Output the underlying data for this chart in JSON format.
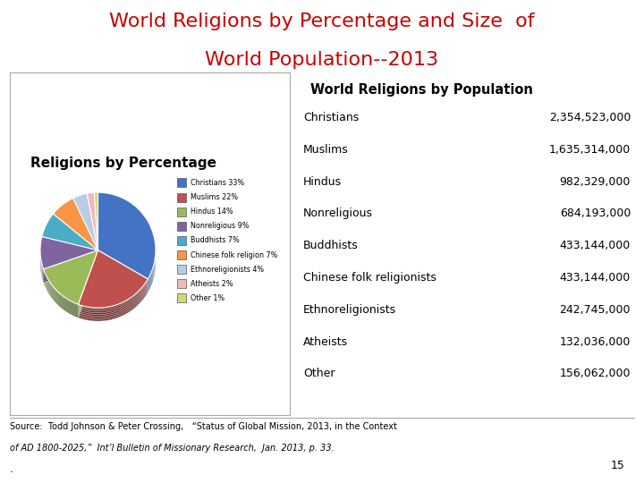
{
  "title_line1": "World Religions by Percentage and Size  of",
  "title_line2": "World Population--2013",
  "title_color": "#cc0000",
  "title_fontsize": 16,
  "pie_title": "Religions by Percentage",
  "pie_labels": [
    "Christians 33%",
    "Muslims 22%",
    "Hindus 14%",
    "Nonreligious 9%",
    "Buddhists 7%",
    "Chinese folk religion 7%",
    "Ethnoreligionists 4%",
    "Atheists 2%",
    "Other 1%"
  ],
  "pie_values": [
    33,
    22,
    14,
    9,
    7,
    7,
    4,
    2,
    1
  ],
  "pie_colors": [
    "#4472c4",
    "#c0504d",
    "#9bbb59",
    "#8064a2",
    "#4bacc6",
    "#f79646",
    "#b8cce4",
    "#f2b8b8",
    "#d4d87a"
  ],
  "table_header": "World Religions by Population",
  "table_religions": [
    "Christians",
    "Muslims",
    "Hindus",
    "Nonreligious",
    "Buddhists",
    "Chinese folk religionists",
    "Ethnoreligionists",
    "Atheists",
    "Other"
  ],
  "table_populations": [
    "2,354,523,000",
    "1,635,314,000",
    "982,329,000",
    "684,193,000",
    "433,144,000",
    "433,144,000",
    "242,745,000",
    "132,036,000",
    "156,062,000"
  ],
  "footnote_line1": "Source:  Todd Johnson & Peter Crossing,   “Status of Global Mission, 2013, in the Context",
  "footnote_line2": "of AD 1800-2025,”  Int’l Bulletin of Missionary Research,  Jan. 2013, p. 33.",
  "page_number": "15",
  "bg_color": "#ffffff",
  "pie_box_color": "#f0f0f0",
  "pie_shadow_color": "#8B0000"
}
